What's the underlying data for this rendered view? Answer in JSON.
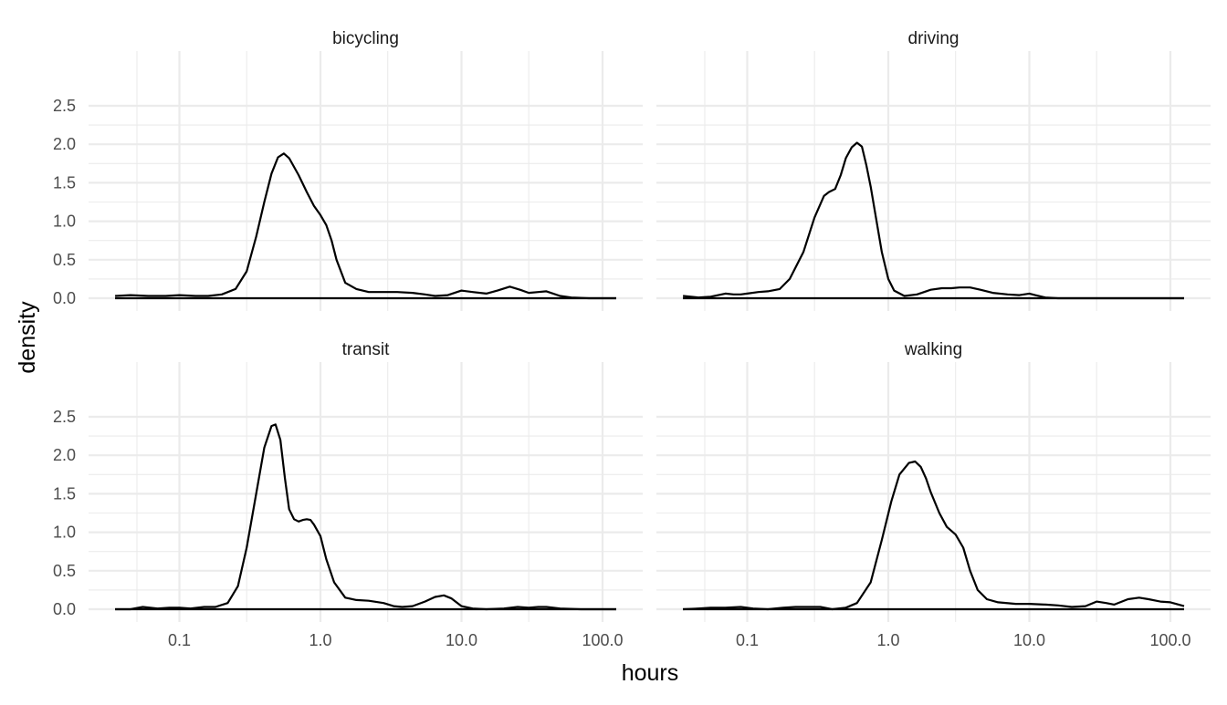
{
  "chart_data": {
    "type": "line",
    "title": "",
    "xlabel": "hours",
    "ylabel": "density",
    "x_scale": "log10",
    "xlim": [
      0.035,
      130
    ],
    "ylim": [
      0,
      2.5
    ],
    "x_ticks": [
      0.1,
      1,
      10,
      100
    ],
    "x_tick_labels": [
      "0.1",
      "1.0",
      "10.0",
      "100.0"
    ],
    "y_ticks": [
      0,
      0.5,
      1,
      1.5,
      2,
      2.5
    ],
    "y_tick_labels": [
      "0.0",
      "0.5",
      "1.0",
      "1.5",
      "2.0",
      "2.5"
    ],
    "grid": true,
    "legend": "none",
    "facets": [
      {
        "label": "bicycling",
        "x": [
          0.035,
          0.045,
          0.06,
          0.08,
          0.1,
          0.13,
          0.16,
          0.2,
          0.25,
          0.3,
          0.35,
          0.4,
          0.45,
          0.5,
          0.55,
          0.6,
          0.7,
          0.8,
          0.9,
          1.0,
          1.1,
          1.2,
          1.3,
          1.5,
          1.8,
          2.2,
          2.8,
          3.5,
          4.5,
          5.5,
          6.5,
          8,
          10,
          12,
          15,
          18,
          22,
          26,
          30,
          35,
          40,
          50,
          60,
          80,
          100,
          125
        ],
        "y": [
          0.03,
          0.04,
          0.03,
          0.03,
          0.04,
          0.03,
          0.03,
          0.05,
          0.12,
          0.35,
          0.8,
          1.25,
          1.62,
          1.83,
          1.88,
          1.82,
          1.6,
          1.38,
          1.2,
          1.08,
          0.95,
          0.75,
          0.5,
          0.2,
          0.12,
          0.08,
          0.08,
          0.08,
          0.07,
          0.05,
          0.03,
          0.04,
          0.1,
          0.08,
          0.06,
          0.1,
          0.15,
          0.11,
          0.07,
          0.08,
          0.09,
          0.03,
          0.01,
          0.0,
          0.0,
          0.0
        ]
      },
      {
        "label": "driving",
        "x": [
          0.035,
          0.045,
          0.055,
          0.07,
          0.08,
          0.09,
          0.1,
          0.12,
          0.14,
          0.17,
          0.2,
          0.25,
          0.3,
          0.35,
          0.38,
          0.42,
          0.46,
          0.5,
          0.55,
          0.6,
          0.65,
          0.7,
          0.75,
          0.8,
          0.9,
          1.0,
          1.1,
          1.3,
          1.6,
          2.0,
          2.4,
          2.8,
          3.2,
          3.8,
          4.5,
          5.5,
          7,
          8.5,
          10,
          11,
          13,
          16,
          20,
          30,
          50,
          80,
          125
        ],
        "y": [
          0.03,
          0.01,
          0.02,
          0.06,
          0.05,
          0.05,
          0.06,
          0.08,
          0.09,
          0.12,
          0.25,
          0.6,
          1.05,
          1.33,
          1.38,
          1.42,
          1.6,
          1.82,
          1.96,
          2.02,
          1.97,
          1.72,
          1.45,
          1.15,
          0.6,
          0.25,
          0.1,
          0.03,
          0.05,
          0.11,
          0.13,
          0.13,
          0.14,
          0.14,
          0.11,
          0.07,
          0.05,
          0.04,
          0.06,
          0.04,
          0.01,
          0.0,
          0.0,
          0.0,
          0.0,
          0.0,
          0.0
        ]
      },
      {
        "label": "transit",
        "x": [
          0.035,
          0.045,
          0.055,
          0.07,
          0.085,
          0.1,
          0.12,
          0.15,
          0.18,
          0.22,
          0.26,
          0.3,
          0.35,
          0.4,
          0.45,
          0.48,
          0.52,
          0.56,
          0.6,
          0.65,
          0.7,
          0.75,
          0.8,
          0.85,
          0.9,
          1.0,
          1.1,
          1.25,
          1.5,
          1.8,
          2.2,
          2.8,
          3.3,
          3.8,
          4.5,
          5.5,
          6.5,
          7.5,
          8.5,
          10,
          12,
          15,
          20,
          25,
          30,
          35,
          40,
          50,
          70,
          100,
          125
        ],
        "y": [
          0.0,
          0.0,
          0.03,
          0.01,
          0.02,
          0.02,
          0.01,
          0.03,
          0.03,
          0.08,
          0.3,
          0.8,
          1.5,
          2.1,
          2.38,
          2.4,
          2.2,
          1.7,
          1.3,
          1.17,
          1.14,
          1.16,
          1.17,
          1.16,
          1.1,
          0.95,
          0.65,
          0.35,
          0.15,
          0.12,
          0.11,
          0.08,
          0.04,
          0.03,
          0.04,
          0.1,
          0.16,
          0.18,
          0.14,
          0.04,
          0.01,
          0.0,
          0.01,
          0.03,
          0.02,
          0.03,
          0.03,
          0.01,
          0.0,
          0.0,
          0.0
        ]
      },
      {
        "label": "walking",
        "x": [
          0.035,
          0.045,
          0.055,
          0.07,
          0.09,
          0.11,
          0.14,
          0.18,
          0.22,
          0.27,
          0.33,
          0.4,
          0.5,
          0.6,
          0.75,
          0.9,
          1.05,
          1.2,
          1.4,
          1.55,
          1.7,
          1.85,
          2.0,
          2.3,
          2.6,
          3.0,
          3.4,
          3.8,
          4.3,
          5.0,
          6.0,
          8,
          10,
          13,
          16,
          20,
          25,
          30,
          35,
          40,
          50,
          60,
          70,
          85,
          100,
          125
        ],
        "y": [
          0.0,
          0.01,
          0.02,
          0.02,
          0.03,
          0.01,
          0.0,
          0.02,
          0.03,
          0.03,
          0.03,
          0.0,
          0.02,
          0.08,
          0.35,
          0.9,
          1.4,
          1.75,
          1.9,
          1.92,
          1.85,
          1.7,
          1.52,
          1.25,
          1.07,
          0.97,
          0.8,
          0.5,
          0.25,
          0.13,
          0.09,
          0.07,
          0.07,
          0.06,
          0.05,
          0.03,
          0.04,
          0.1,
          0.08,
          0.06,
          0.13,
          0.15,
          0.13,
          0.1,
          0.09,
          0.04
        ]
      }
    ]
  }
}
